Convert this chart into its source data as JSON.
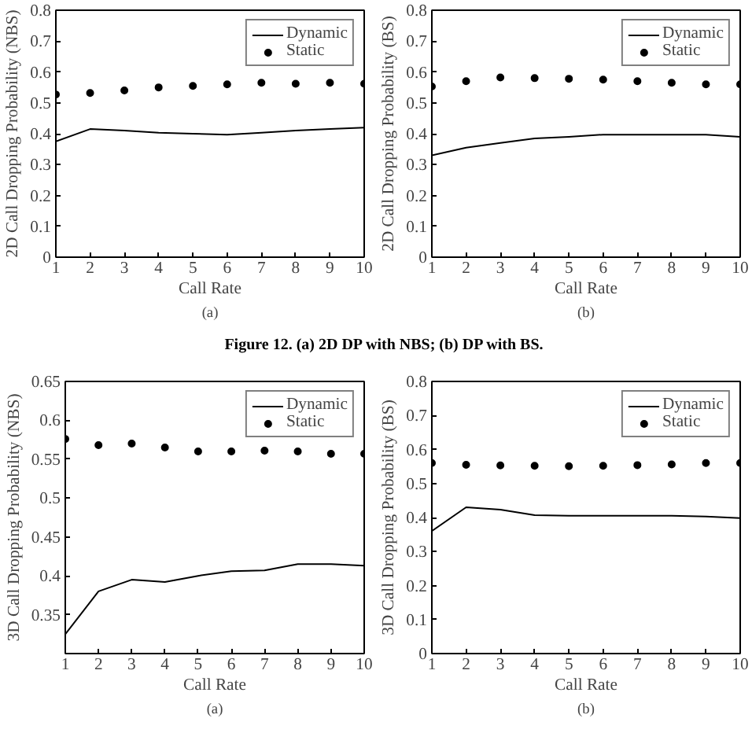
{
  "chart_data": [
    {
      "type": "line",
      "xlabel": "Call Rate",
      "ylabel": "2D Call Dropping Probability (NBS)",
      "annotations": [
        "(a)"
      ],
      "x": [
        1,
        2,
        3,
        4,
        5,
        6,
        7,
        8,
        9,
        10
      ],
      "xlim": [
        1,
        10
      ],
      "xticks": [
        1,
        2,
        3,
        4,
        5,
        6,
        7,
        8,
        9,
        10
      ],
      "ylim": [
        0,
        0.8
      ],
      "yticks": [
        0,
        0.1,
        0.2,
        0.3,
        0.4,
        0.5,
        0.6,
        0.7,
        0.8
      ],
      "grid": false,
      "legend": "top right",
      "series": [
        {
          "name": "Dynamic",
          "line_style": "solid",
          "marker": "none",
          "color": "#000000",
          "values": [
            0.375,
            0.415,
            0.41,
            0.403,
            0.4,
            0.397,
            0.403,
            0.41,
            0.415,
            0.42
          ]
        },
        {
          "name": "Static",
          "type": "scatter",
          "marker": "circle",
          "color": "#000000",
          "values": [
            0.527,
            0.532,
            0.54,
            0.55,
            0.555,
            0.56,
            0.565,
            0.562,
            0.565,
            0.562
          ]
        }
      ]
    },
    {
      "type": "line",
      "xlabel": "Call Rate",
      "ylabel": "2D Call Dropping Probability (BS)",
      "annotations": [
        "(b)",
        "Figure 12. (a) 2D DP with NBS; (b) DP with BS."
      ],
      "x": [
        1,
        2,
        3,
        4,
        5,
        6,
        7,
        8,
        9,
        10
      ],
      "xlim": [
        1,
        10
      ],
      "xticks": [
        1,
        2,
        3,
        4,
        5,
        6,
        7,
        8,
        9,
        10
      ],
      "ylim": [
        0,
        0.8
      ],
      "yticks": [
        0,
        0.1,
        0.2,
        0.3,
        0.4,
        0.5,
        0.6,
        0.7,
        0.8
      ],
      "grid": false,
      "legend": "top right",
      "series": [
        {
          "name": "Dynamic",
          "line_style": "solid",
          "marker": "none",
          "color": "#000000",
          "values": [
            0.33,
            0.355,
            0.37,
            0.385,
            0.39,
            0.397,
            0.397,
            0.397,
            0.397,
            0.39
          ]
        },
        {
          "name": "Static",
          "type": "scatter",
          "marker": "circle",
          "color": "#000000",
          "values": [
            0.553,
            0.57,
            0.582,
            0.58,
            0.578,
            0.575,
            0.57,
            0.565,
            0.56,
            0.56
          ]
        }
      ]
    },
    {
      "type": "line",
      "xlabel": "Call Rate",
      "ylabel": "3D Call Dropping Probability (NBS)",
      "annotations": [
        "(a)"
      ],
      "x": [
        1,
        2,
        3,
        4,
        5,
        6,
        7,
        8,
        9,
        10
      ],
      "xlim": [
        1,
        10
      ],
      "xticks": [
        1,
        2,
        3,
        4,
        5,
        6,
        7,
        8,
        9,
        10
      ],
      "ylim": [
        0.3,
        0.65
      ],
      "yticks": [
        0.35,
        0.4,
        0.45,
        0.5,
        0.55,
        0.6,
        0.65
      ],
      "grid": false,
      "legend": "top right",
      "series": [
        {
          "name": "Dynamic",
          "line_style": "solid",
          "marker": "none",
          "color": "#000000",
          "values": [
            0.325,
            0.38,
            0.395,
            0.392,
            0.4,
            0.406,
            0.407,
            0.415,
            0.415,
            0.413
          ]
        },
        {
          "name": "Static",
          "type": "scatter",
          "marker": "circle",
          "color": "#000000",
          "values": [
            0.576,
            0.568,
            0.57,
            0.565,
            0.56,
            0.56,
            0.561,
            0.56,
            0.557,
            0.557
          ]
        }
      ]
    },
    {
      "type": "line",
      "xlabel": "Call Rate",
      "ylabel": "3D Call Dropping Probability (BS)",
      "annotations": [
        "(b)"
      ],
      "x": [
        1,
        2,
        3,
        4,
        5,
        6,
        7,
        8,
        9,
        10
      ],
      "xlim": [
        1,
        10
      ],
      "xticks": [
        1,
        2,
        3,
        4,
        5,
        6,
        7,
        8,
        9,
        10
      ],
      "ylim": [
        0,
        0.8
      ],
      "yticks": [
        0,
        0.1,
        0.2,
        0.3,
        0.4,
        0.5,
        0.6,
        0.7,
        0.8
      ],
      "grid": false,
      "legend": "top right",
      "series": [
        {
          "name": "Dynamic",
          "line_style": "solid",
          "marker": "none",
          "color": "#000000",
          "values": [
            0.36,
            0.43,
            0.423,
            0.407,
            0.405,
            0.405,
            0.405,
            0.405,
            0.403,
            0.398
          ]
        },
        {
          "name": "Static",
          "type": "scatter",
          "marker": "circle",
          "color": "#000000",
          "values": [
            0.56,
            0.555,
            0.553,
            0.552,
            0.551,
            0.552,
            0.554,
            0.556,
            0.56,
            0.56
          ]
        }
      ]
    }
  ]
}
